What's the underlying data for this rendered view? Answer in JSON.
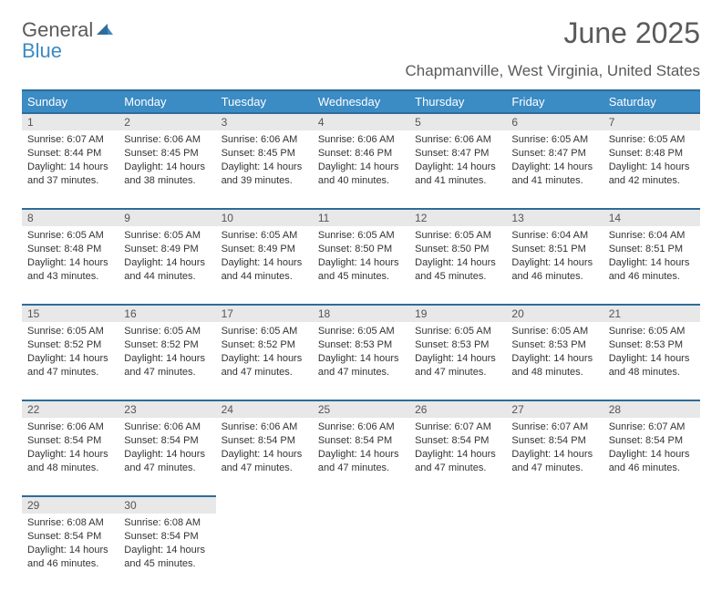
{
  "logo": {
    "word1": "General",
    "word2": "Blue"
  },
  "title": "June 2025",
  "location": "Chapmanville, West Virginia, United States",
  "colors": {
    "header_bg": "#3b8bc4",
    "header_border": "#2e6c99",
    "daynum_bg": "#e8e8e8",
    "text": "#333333",
    "muted": "#5a5a5a"
  },
  "weekdays": [
    "Sunday",
    "Monday",
    "Tuesday",
    "Wednesday",
    "Thursday",
    "Friday",
    "Saturday"
  ],
  "weeks": [
    [
      {
        "day": "1",
        "sunrise": "Sunrise: 6:07 AM",
        "sunset": "Sunset: 8:44 PM",
        "daylight": "Daylight: 14 hours and 37 minutes."
      },
      {
        "day": "2",
        "sunrise": "Sunrise: 6:06 AM",
        "sunset": "Sunset: 8:45 PM",
        "daylight": "Daylight: 14 hours and 38 minutes."
      },
      {
        "day": "3",
        "sunrise": "Sunrise: 6:06 AM",
        "sunset": "Sunset: 8:45 PM",
        "daylight": "Daylight: 14 hours and 39 minutes."
      },
      {
        "day": "4",
        "sunrise": "Sunrise: 6:06 AM",
        "sunset": "Sunset: 8:46 PM",
        "daylight": "Daylight: 14 hours and 40 minutes."
      },
      {
        "day": "5",
        "sunrise": "Sunrise: 6:06 AM",
        "sunset": "Sunset: 8:47 PM",
        "daylight": "Daylight: 14 hours and 41 minutes."
      },
      {
        "day": "6",
        "sunrise": "Sunrise: 6:05 AM",
        "sunset": "Sunset: 8:47 PM",
        "daylight": "Daylight: 14 hours and 41 minutes."
      },
      {
        "day": "7",
        "sunrise": "Sunrise: 6:05 AM",
        "sunset": "Sunset: 8:48 PM",
        "daylight": "Daylight: 14 hours and 42 minutes."
      }
    ],
    [
      {
        "day": "8",
        "sunrise": "Sunrise: 6:05 AM",
        "sunset": "Sunset: 8:48 PM",
        "daylight": "Daylight: 14 hours and 43 minutes."
      },
      {
        "day": "9",
        "sunrise": "Sunrise: 6:05 AM",
        "sunset": "Sunset: 8:49 PM",
        "daylight": "Daylight: 14 hours and 44 minutes."
      },
      {
        "day": "10",
        "sunrise": "Sunrise: 6:05 AM",
        "sunset": "Sunset: 8:49 PM",
        "daylight": "Daylight: 14 hours and 44 minutes."
      },
      {
        "day": "11",
        "sunrise": "Sunrise: 6:05 AM",
        "sunset": "Sunset: 8:50 PM",
        "daylight": "Daylight: 14 hours and 45 minutes."
      },
      {
        "day": "12",
        "sunrise": "Sunrise: 6:05 AM",
        "sunset": "Sunset: 8:50 PM",
        "daylight": "Daylight: 14 hours and 45 minutes."
      },
      {
        "day": "13",
        "sunrise": "Sunrise: 6:04 AM",
        "sunset": "Sunset: 8:51 PM",
        "daylight": "Daylight: 14 hours and 46 minutes."
      },
      {
        "day": "14",
        "sunrise": "Sunrise: 6:04 AM",
        "sunset": "Sunset: 8:51 PM",
        "daylight": "Daylight: 14 hours and 46 minutes."
      }
    ],
    [
      {
        "day": "15",
        "sunrise": "Sunrise: 6:05 AM",
        "sunset": "Sunset: 8:52 PM",
        "daylight": "Daylight: 14 hours and 47 minutes."
      },
      {
        "day": "16",
        "sunrise": "Sunrise: 6:05 AM",
        "sunset": "Sunset: 8:52 PM",
        "daylight": "Daylight: 14 hours and 47 minutes."
      },
      {
        "day": "17",
        "sunrise": "Sunrise: 6:05 AM",
        "sunset": "Sunset: 8:52 PM",
        "daylight": "Daylight: 14 hours and 47 minutes."
      },
      {
        "day": "18",
        "sunrise": "Sunrise: 6:05 AM",
        "sunset": "Sunset: 8:53 PM",
        "daylight": "Daylight: 14 hours and 47 minutes."
      },
      {
        "day": "19",
        "sunrise": "Sunrise: 6:05 AM",
        "sunset": "Sunset: 8:53 PM",
        "daylight": "Daylight: 14 hours and 47 minutes."
      },
      {
        "day": "20",
        "sunrise": "Sunrise: 6:05 AM",
        "sunset": "Sunset: 8:53 PM",
        "daylight": "Daylight: 14 hours and 48 minutes."
      },
      {
        "day": "21",
        "sunrise": "Sunrise: 6:05 AM",
        "sunset": "Sunset: 8:53 PM",
        "daylight": "Daylight: 14 hours and 48 minutes."
      }
    ],
    [
      {
        "day": "22",
        "sunrise": "Sunrise: 6:06 AM",
        "sunset": "Sunset: 8:54 PM",
        "daylight": "Daylight: 14 hours and 48 minutes."
      },
      {
        "day": "23",
        "sunrise": "Sunrise: 6:06 AM",
        "sunset": "Sunset: 8:54 PM",
        "daylight": "Daylight: 14 hours and 47 minutes."
      },
      {
        "day": "24",
        "sunrise": "Sunrise: 6:06 AM",
        "sunset": "Sunset: 8:54 PM",
        "daylight": "Daylight: 14 hours and 47 minutes."
      },
      {
        "day": "25",
        "sunrise": "Sunrise: 6:06 AM",
        "sunset": "Sunset: 8:54 PM",
        "daylight": "Daylight: 14 hours and 47 minutes."
      },
      {
        "day": "26",
        "sunrise": "Sunrise: 6:07 AM",
        "sunset": "Sunset: 8:54 PM",
        "daylight": "Daylight: 14 hours and 47 minutes."
      },
      {
        "day": "27",
        "sunrise": "Sunrise: 6:07 AM",
        "sunset": "Sunset: 8:54 PM",
        "daylight": "Daylight: 14 hours and 47 minutes."
      },
      {
        "day": "28",
        "sunrise": "Sunrise: 6:07 AM",
        "sunset": "Sunset: 8:54 PM",
        "daylight": "Daylight: 14 hours and 46 minutes."
      }
    ],
    [
      {
        "day": "29",
        "sunrise": "Sunrise: 6:08 AM",
        "sunset": "Sunset: 8:54 PM",
        "daylight": "Daylight: 14 hours and 46 minutes."
      },
      {
        "day": "30",
        "sunrise": "Sunrise: 6:08 AM",
        "sunset": "Sunset: 8:54 PM",
        "daylight": "Daylight: 14 hours and 45 minutes."
      },
      null,
      null,
      null,
      null,
      null
    ]
  ]
}
